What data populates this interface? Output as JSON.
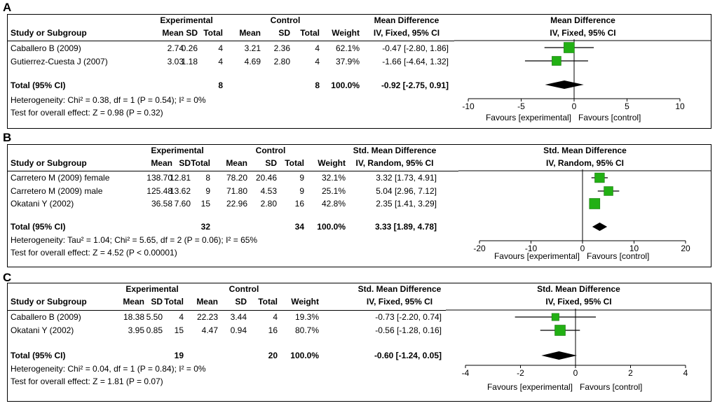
{
  "colors": {
    "square": "#22b014",
    "diamond": "#000000",
    "line": "#000000"
  },
  "chart_data": [
    {
      "type": "forest",
      "panel_label": "A",
      "groups": {
        "experimental": "Experimental",
        "control": "Control"
      },
      "columns": {
        "study": "Study or Subgroup",
        "mean": "Mean",
        "sd": "SD",
        "total": "Total",
        "weight": "Weight"
      },
      "effect_title": "Mean Difference",
      "effect_method": "IV, Fixed, 95% CI",
      "studies": [
        {
          "name": "Caballero B (2009)",
          "e_mean": "2.74",
          "e_sd": "0.26",
          "e_total": "4",
          "c_mean": "3.21",
          "c_sd": "2.36",
          "c_total": "4",
          "weight": "62.1%",
          "ci_text": "-0.47 [-2.80, 1.86]",
          "est": -0.47,
          "lo": -2.8,
          "hi": 1.86,
          "w": 62.1
        },
        {
          "name": "Gutierrez-Cuesta J (2007)",
          "e_mean": "3.03",
          "e_sd": "1.18",
          "e_total": "4",
          "c_mean": "4.69",
          "c_sd": "2.80",
          "c_total": "4",
          "weight": "37.9%",
          "ci_text": "-1.66 [-4.64, 1.32]",
          "est": -1.66,
          "lo": -4.64,
          "hi": 1.32,
          "w": 37.9
        }
      ],
      "total": {
        "label": "Total (95% CI)",
        "e_total": "8",
        "c_total": "8",
        "weight": "100.0%",
        "ci_text": "-0.92 [-2.75, 0.91]",
        "est": -0.92,
        "lo": -2.75,
        "hi": 0.91
      },
      "heterogeneity": "Heterogeneity: Chi² = 0.38, df = 1 (P = 0.54); I² = 0%",
      "overall": "Test for overall effect: Z = 0.98 (P = 0.32)",
      "xlim": [
        -10,
        10
      ],
      "ticks": [
        -10,
        -5,
        0,
        5,
        10
      ],
      "favours_left": "Favours [experimental]",
      "favours_right": "Favours [control]"
    },
    {
      "type": "forest",
      "panel_label": "B",
      "groups": {
        "experimental": "Experimental",
        "control": "Control"
      },
      "columns": {
        "study": "Study or Subgroup",
        "mean": "Mean",
        "sd": "SD",
        "total": "Total",
        "weight": "Weight"
      },
      "effect_title": "Std. Mean Difference",
      "effect_method": "IV, Random, 95% CI",
      "studies": [
        {
          "name": "Carretero M (2009) female",
          "e_mean": "138.70",
          "e_sd": "12.81",
          "e_total": "8",
          "c_mean": "78.20",
          "c_sd": "20.46",
          "c_total": "9",
          "weight": "32.1%",
          "ci_text": "3.32 [1.73, 4.91]",
          "est": 3.32,
          "lo": 1.73,
          "hi": 4.91,
          "w": 32.1
        },
        {
          "name": "Carretero M (2009) male",
          "e_mean": "125.48",
          "e_sd": "13.62",
          "e_total": "9",
          "c_mean": "71.80",
          "c_sd": "4.53",
          "c_total": "9",
          "weight": "25.1%",
          "ci_text": "5.04 [2.96, 7.12]",
          "est": 5.04,
          "lo": 2.96,
          "hi": 7.12,
          "w": 25.1
        },
        {
          "name": "Okatani Y (2002)",
          "e_mean": "36.58",
          "e_sd": "7.60",
          "e_total": "15",
          "c_mean": "22.96",
          "c_sd": "2.80",
          "c_total": "16",
          "weight": "42.8%",
          "ci_text": "2.35 [1.41, 3.29]",
          "est": 2.35,
          "lo": 1.41,
          "hi": 3.29,
          "w": 42.8
        }
      ],
      "total": {
        "label": "Total (95% CI)",
        "e_total": "32",
        "c_total": "34",
        "weight": "100.0%",
        "ci_text": "3.33 [1.89, 4.78]",
        "est": 3.33,
        "lo": 1.89,
        "hi": 4.78
      },
      "heterogeneity": "Heterogeneity: Tau² = 1.04; Chi² = 5.65, df = 2 (P = 0.06); I² = 65%",
      "overall": "Test for overall effect: Z = 4.52 (P < 0.00001)",
      "xlim": [
        -20,
        20
      ],
      "ticks": [
        -20,
        -10,
        0,
        10,
        20
      ],
      "favours_left": "Favours [experimental]",
      "favours_right": "Favours [control]"
    },
    {
      "type": "forest",
      "panel_label": "C",
      "groups": {
        "experimental": "Experimental",
        "control": "Control"
      },
      "columns": {
        "study": "Study or Subgroup",
        "mean": "Mean",
        "sd": "SD",
        "total": "Total",
        "weight": "Weight"
      },
      "effect_title": "Std. Mean Difference",
      "effect_method": "IV, Fixed, 95% CI",
      "studies": [
        {
          "name": "Caballero B (2009)",
          "e_mean": "18.38",
          "e_sd": "5.50",
          "e_total": "4",
          "c_mean": "22.23",
          "c_sd": "3.44",
          "c_total": "4",
          "weight": "19.3%",
          "ci_text": "-0.73 [-2.20, 0.74]",
          "est": -0.73,
          "lo": -2.2,
          "hi": 0.74,
          "w": 19.3
        },
        {
          "name": "Okatani Y (2002)",
          "e_mean": "3.95",
          "e_sd": "0.85",
          "e_total": "15",
          "c_mean": "4.47",
          "c_sd": "0.94",
          "c_total": "16",
          "weight": "80.7%",
          "ci_text": "-0.56 [-1.28, 0.16]",
          "est": -0.56,
          "lo": -1.28,
          "hi": 0.16,
          "w": 80.7
        }
      ],
      "total": {
        "label": "Total (95% CI)",
        "e_total": "19",
        "c_total": "20",
        "weight": "100.0%",
        "ci_text": "-0.60 [-1.24, 0.05]",
        "est": -0.6,
        "lo": -1.24,
        "hi": 0.05
      },
      "heterogeneity": "Heterogeneity: Chi² = 0.04, df = 1 (P = 0.84); I² = 0%",
      "overall": "Test for overall effect: Z = 1.81 (P = 0.07)",
      "xlim": [
        -4,
        4
      ],
      "ticks": [
        -4,
        -2,
        0,
        2,
        4
      ],
      "favours_left": "Favours [experimental]",
      "favours_right": "Favours [control]"
    }
  ]
}
